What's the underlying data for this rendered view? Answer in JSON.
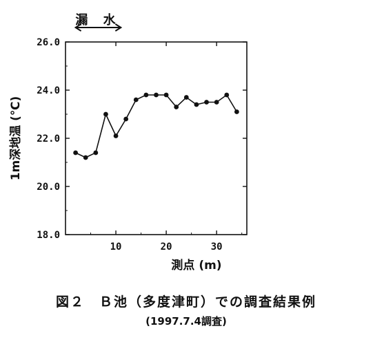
{
  "annotation": {
    "label": "漏 水",
    "x_range": [
      2,
      11
    ]
  },
  "caption": {
    "title": "図２　Ｂ池（多度津町）での調査結果例",
    "subtitle": "(1997.7.4調査)"
  },
  "chart_data": {
    "type": "line",
    "title": "",
    "xlabel": "測点 (m)",
    "ylabel": "1m深地温 (℃)",
    "xlim": [
      0,
      36
    ],
    "ylim": [
      18.0,
      26.0
    ],
    "x_ticks": [
      10,
      20,
      30
    ],
    "y_ticks": [
      18.0,
      20.0,
      22.0,
      24.0,
      26.0
    ],
    "x_tick_labels": [
      "10",
      "20",
      "30"
    ],
    "y_tick_labels": [
      "18.0",
      "20.0",
      "22.0",
      "24.0",
      "26.0"
    ],
    "grid": false,
    "legend": "none",
    "series": [
      {
        "x": [
          2,
          4,
          6,
          8,
          10,
          12,
          14,
          16,
          18,
          20,
          22,
          24,
          26,
          28,
          30,
          32,
          34
        ],
        "y": [
          21.4,
          21.2,
          21.4,
          23.0,
          22.1,
          22.8,
          23.6,
          23.8,
          23.8,
          23.8,
          23.3,
          23.7,
          23.4,
          23.5,
          23.5,
          23.8,
          23.1
        ]
      }
    ]
  }
}
